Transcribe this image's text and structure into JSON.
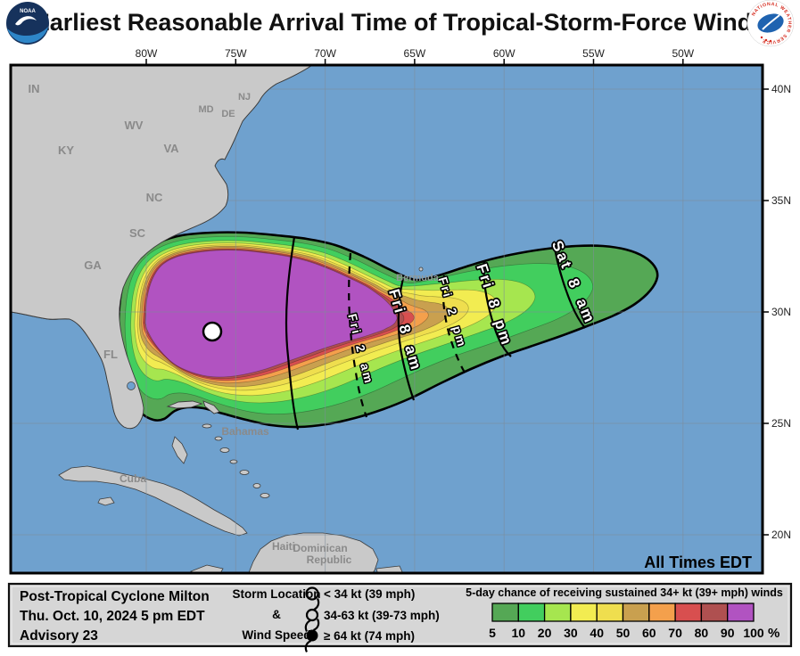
{
  "header": {
    "title": "Earliest Reasonable Arrival Time of Tropical-Storm-Force Winds",
    "noaa_logo_text": "NOAA",
    "nws_logo_text": "NATIONAL WEATHER SERVICE"
  },
  "map": {
    "lon_ticks": [
      "80W",
      "75W",
      "70W",
      "65W",
      "60W",
      "55W",
      "50W"
    ],
    "lat_ticks": [
      "40N",
      "35N",
      "30N",
      "25N",
      "20N"
    ],
    "states": [
      "IN",
      "KY",
      "WV",
      "VA",
      "NC",
      "SC",
      "GA",
      "FL",
      "NJ",
      "DE",
      "MD"
    ],
    "places": {
      "bermuda": "Bermuda",
      "bahamas": "Bahamas",
      "cuba": "Cuba",
      "haiti": "Haiti",
      "dominican_line1": "Dominican",
      "dominican_line2": "Republic"
    },
    "arrival_labels": [
      "Fri 2 am",
      "Fri 8 am",
      "Fri 2 pm",
      "Fri 8 pm",
      "Sat 8 am"
    ],
    "note": "All Times EDT"
  },
  "storm_info": {
    "name": "Post-Tropical Cyclone Milton",
    "datetime": "Thu. Oct. 10, 2024  5 pm EDT",
    "advisory": "Advisory 23"
  },
  "symbol_legend": {
    "rows": [
      "Storm Location",
      "&",
      "Wind Speed"
    ],
    "items": [
      "< 34 kt (39 mph)",
      "34-63 kt (39-73 mph)",
      "≥ 64 kt (74 mph)"
    ]
  },
  "probability_legend": {
    "title": "5-day chance of receiving sustained 34+ kt (39+ mph) winds",
    "ticks": [
      "5",
      "10",
      "20",
      "30",
      "40",
      "50",
      "60",
      "70",
      "80",
      "90",
      "100"
    ],
    "unit": "%",
    "colors": [
      "#55A855",
      "#42CE5E",
      "#A6E64F",
      "#F2EC51",
      "#EFDE4E",
      "#C9A04F",
      "#F4A04C",
      "#D84F4F",
      "#AF5050",
      "#B153C1"
    ]
  },
  "colors": {
    "ocean": "#6FA1CE",
    "land": "#C9C9C9",
    "grid": "#7E8C99",
    "label_gray": "#8A8A8A"
  }
}
